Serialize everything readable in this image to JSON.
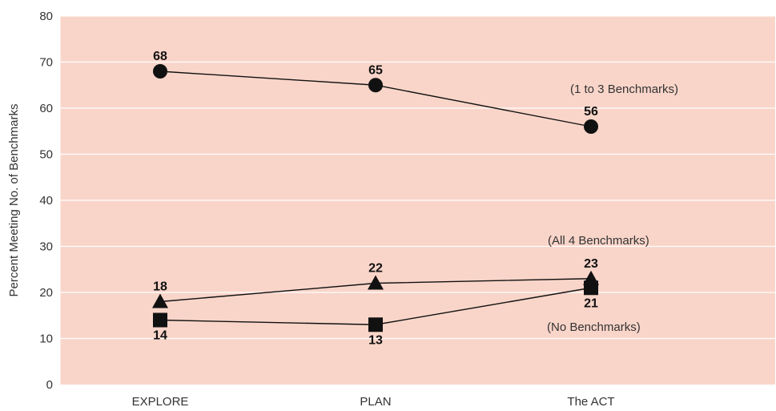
{
  "chart_data": {
    "type": "line",
    "title": "",
    "xlabel": "",
    "ylabel": "Percent Meeting No. of Benchmarks",
    "categories": [
      "EXPLORE",
      "PLAN",
      "The ACT"
    ],
    "ylim": [
      0,
      80
    ],
    "yticks": [
      0,
      10,
      20,
      30,
      40,
      50,
      60,
      70,
      80
    ],
    "grid": true,
    "background": "#f9d5c9",
    "series": [
      {
        "name": "(1 to 3  Benchmarks)",
        "marker": "circle",
        "values": [
          68,
          65,
          56
        ],
        "labels": [
          "68",
          "65",
          "56"
        ]
      },
      {
        "name": "(All 4  Benchmarks)",
        "marker": "triangle",
        "values": [
          18,
          22,
          23
        ],
        "labels": [
          "18",
          "22",
          "23"
        ]
      },
      {
        "name": "(No Benchmarks)",
        "marker": "square",
        "values": [
          14,
          13,
          21
        ],
        "labels": [
          "14",
          "13",
          "21"
        ]
      }
    ]
  }
}
